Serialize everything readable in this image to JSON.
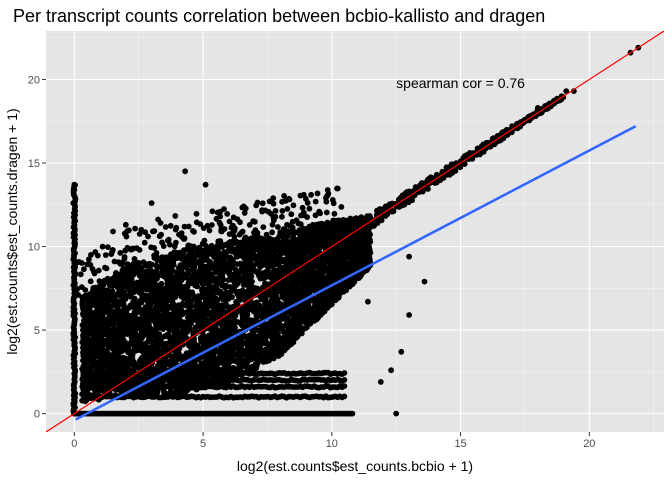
{
  "chart_data": {
    "type": "scatter",
    "title": "Per transcript counts correlation between bcbio-kallisto and dragen",
    "xlabel": "log2(est.counts$est_counts.bcbio + 1)",
    "ylabel": "log2(est.counts$est_counts.dragen + 1)",
    "xlim": [
      -1.1,
      22.9
    ],
    "ylim": [
      -1.1,
      22.9
    ],
    "x_ticks": [
      0,
      5,
      10,
      15,
      20
    ],
    "y_ticks": [
      0,
      5,
      10,
      15,
      20
    ],
    "grid": true,
    "background": "#e5e5e5",
    "annotation": {
      "text": "spearman cor =  0.76",
      "x": 15,
      "y": 19.8
    },
    "point_color": "#000000",
    "reference_lines": [
      {
        "name": "identity",
        "color": "#ff0000",
        "slope": 1.0,
        "intercept": 0.0
      },
      {
        "name": "fit",
        "color": "#3366ff",
        "x_range": [
          0.05,
          21.8
        ],
        "y_range": [
          -0.35,
          17.2
        ]
      }
    ],
    "points": [
      [
        0,
        13.7
      ],
      [
        0,
        13.4
      ],
      [
        0,
        12.6
      ],
      [
        0,
        12.0
      ],
      [
        0,
        11.5
      ],
      [
        0,
        10.8
      ],
      [
        0,
        10.2
      ],
      [
        0,
        9.6
      ],
      [
        0,
        9.0
      ],
      [
        0,
        8.4
      ],
      [
        0,
        7.8
      ],
      [
        0,
        7.2
      ],
      [
        0,
        6.6
      ],
      [
        0,
        6.0
      ],
      [
        0,
        5.4
      ],
      [
        0,
        4.8
      ],
      [
        0,
        4.2
      ],
      [
        0,
        3.6
      ],
      [
        0,
        3.0
      ],
      [
        0,
        2.4
      ],
      [
        0,
        1.8
      ],
      [
        0,
        1.2
      ],
      [
        0,
        0.6
      ],
      [
        0,
        0
      ],
      [
        4.3,
        14.5
      ],
      [
        5.1,
        13.7
      ],
      [
        3.0,
        12.6
      ],
      [
        2.0,
        11.3
      ],
      [
        1.5,
        10.9
      ],
      [
        2.6,
        11.0
      ],
      [
        11.4,
        6.7
      ],
      [
        13.0,
        9.4
      ],
      [
        13.6,
        7.9
      ],
      [
        13.0,
        5.9
      ],
      [
        12.7,
        3.7
      ],
      [
        12.3,
        2.6
      ],
      [
        11.9,
        1.9
      ],
      [
        12.5,
        0.0
      ],
      [
        11.5,
        11.6
      ],
      [
        12.0,
        12.2
      ],
      [
        12.6,
        12.8
      ],
      [
        13.0,
        13.3
      ],
      [
        13.5,
        13.8
      ],
      [
        14.0,
        14.1
      ],
      [
        14.5,
        14.6
      ],
      [
        15.0,
        15.1
      ],
      [
        15.5,
        15.6
      ],
      [
        16.0,
        16.2
      ],
      [
        16.5,
        16.6
      ],
      [
        17.0,
        17.2
      ],
      [
        17.5,
        17.6
      ],
      [
        18.0,
        18.3
      ],
      [
        18.5,
        18.5
      ],
      [
        19.1,
        19.3
      ],
      [
        19.4,
        19.3
      ],
      [
        21.6,
        21.6
      ],
      [
        21.9,
        21.9
      ]
    ],
    "dense_bands": {
      "main_cloud_up_to_x": 10.5,
      "upper_envelope": [
        [
          0.3,
          7.0
        ],
        [
          2.0,
          8.8
        ],
        [
          4.0,
          9.8
        ],
        [
          6.0,
          10.3
        ],
        [
          8.0,
          10.9
        ],
        [
          10.0,
          11.5
        ],
        [
          11.5,
          11.9
        ]
      ],
      "lower_envelope": [
        [
          0.3,
          0.7
        ],
        [
          2.0,
          1.0
        ],
        [
          4.0,
          1.2
        ],
        [
          6.0,
          1.8
        ],
        [
          8.0,
          3.5
        ],
        [
          10.0,
          6.5
        ],
        [
          11.5,
          8.8
        ]
      ],
      "zero_row_x_range": [
        0,
        10.8
      ],
      "floor_rows": [
        0.0,
        1.0,
        1.6,
        2.0,
        2.4
      ]
    }
  }
}
